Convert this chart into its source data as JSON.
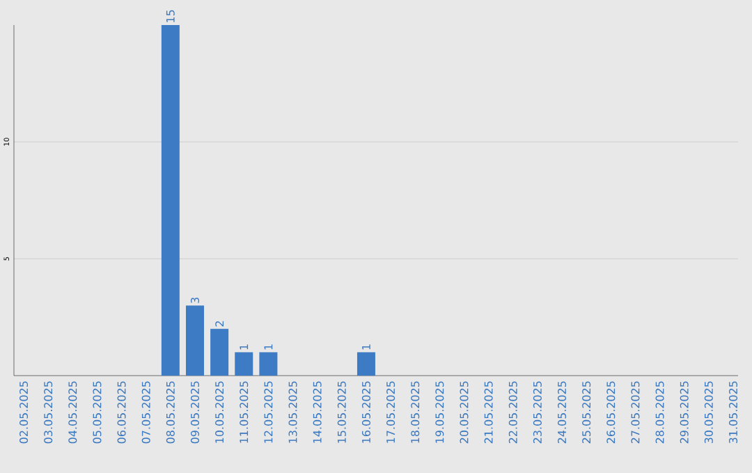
{
  "chart_data": {
    "type": "bar",
    "categories": [
      "02.05.2025",
      "03.05.2025",
      "04.05.2025",
      "05.05.2025",
      "06.05.2025",
      "07.05.2025",
      "08.05.2025",
      "09.05.2025",
      "10.05.2025",
      "11.05.2025",
      "12.05.2025",
      "13.05.2025",
      "14.05.2025",
      "15.05.2025",
      "16.05.2025",
      "17.05.2025",
      "18.05.2025",
      "19.05.2025",
      "20.05.2025",
      "21.05.2025",
      "22.05.2025",
      "23.05.2025",
      "24.05.2025",
      "25.05.2025",
      "26.05.2025",
      "27.05.2025",
      "28.05.2025",
      "29.05.2025",
      "30.05.2025",
      "31.05.2025"
    ],
    "values": [
      0,
      0,
      0,
      0,
      0,
      0,
      15,
      3,
      2,
      1,
      1,
      0,
      0,
      0,
      1,
      0,
      0,
      0,
      0,
      0,
      0,
      0,
      0,
      0,
      0,
      0,
      0,
      0,
      0,
      0
    ],
    "value_labels": [
      null,
      null,
      null,
      null,
      null,
      null,
      "15",
      "3",
      "2",
      "1",
      "1",
      null,
      null,
      null,
      "1",
      null,
      null,
      null,
      null,
      null,
      null,
      null,
      null,
      null,
      null,
      null,
      null,
      null,
      null,
      null
    ],
    "color": "#3d7cc4",
    "ylim": [
      0,
      15
    ],
    "yticks": [
      5,
      10
    ],
    "grid": "y"
  }
}
